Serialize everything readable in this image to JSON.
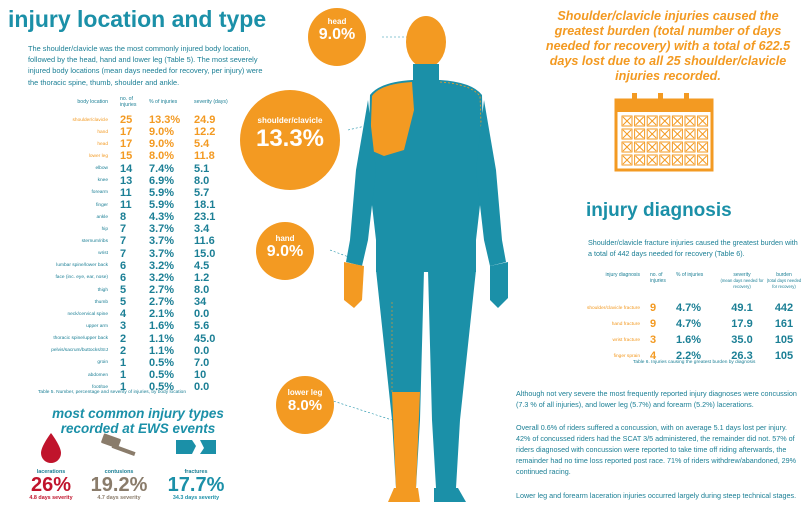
{
  "header": {
    "title": "injury location and type",
    "intro": "The shoulder/clavicle was the most commonly injured body location, followed by the head, hand and lower leg (Table 5). The most severely injured body locations (mean days needed for recovery, per injury) were the thoracic spine, thumb, shoulder and ankle."
  },
  "location_table": {
    "headers": [
      "body location",
      "no. of injuries",
      "% of injuries",
      "severity (days)"
    ],
    "rows": [
      {
        "name": "shoulder/clavicle",
        "n": "25",
        "pct": "13.3%",
        "sev": "24.9",
        "hi": true
      },
      {
        "name": "hand",
        "n": "17",
        "pct": "9.0%",
        "sev": "12.2",
        "hi": true
      },
      {
        "name": "head",
        "n": "17",
        "pct": "9.0%",
        "sev": "5.4",
        "hi": true
      },
      {
        "name": "lower leg",
        "n": "15",
        "pct": "8.0%",
        "sev": "11.8",
        "hi": true
      },
      {
        "name": "elbow",
        "n": "14",
        "pct": "7.4%",
        "sev": "5.1",
        "hi": false
      },
      {
        "name": "knee",
        "n": "13",
        "pct": "6.9%",
        "sev": "8.0",
        "hi": false
      },
      {
        "name": "forearm",
        "n": "11",
        "pct": "5.9%",
        "sev": "5.7",
        "hi": false
      },
      {
        "name": "finger",
        "n": "11",
        "pct": "5.9%",
        "sev": "18.1",
        "hi": false
      },
      {
        "name": "ankle",
        "n": "8",
        "pct": "4.3%",
        "sev": "23.1",
        "hi": false
      },
      {
        "name": "hip",
        "n": "7",
        "pct": "3.7%",
        "sev": "3.4",
        "hi": false
      },
      {
        "name": "sternum/ribs",
        "n": "7",
        "pct": "3.7%",
        "sev": "11.6",
        "hi": false
      },
      {
        "name": "wrist",
        "n": "7",
        "pct": "3.7%",
        "sev": "15.0",
        "hi": false
      },
      {
        "name": "lumbar spine/lower back",
        "n": "6",
        "pct": "3.2%",
        "sev": "4.5",
        "hi": false
      },
      {
        "name": "face (inc. eye, ear, nose)",
        "n": "6",
        "pct": "3.2%",
        "sev": "1.2",
        "hi": false
      },
      {
        "name": "thigh",
        "n": "5",
        "pct": "2.7%",
        "sev": "8.0",
        "hi": false
      },
      {
        "name": "thumb",
        "n": "5",
        "pct": "2.7%",
        "sev": "34",
        "hi": false
      },
      {
        "name": "neck/cervical spine",
        "n": "4",
        "pct": "2.1%",
        "sev": "0.0",
        "hi": false
      },
      {
        "name": "upper arm",
        "n": "3",
        "pct": "1.6%",
        "sev": "5.6",
        "hi": false
      },
      {
        "name": "thoracic spine/upper back",
        "n": "2",
        "pct": "1.1%",
        "sev": "45.0",
        "hi": false
      },
      {
        "name": "pelvis/sacrum/buttocks/SIJ",
        "n": "2",
        "pct": "1.1%",
        "sev": "0.0",
        "hi": false
      },
      {
        "name": "groin",
        "n": "1",
        "pct": "0.5%",
        "sev": "7.0",
        "hi": false
      },
      {
        "name": "abdomen",
        "n": "1",
        "pct": "0.5%",
        "sev": "10",
        "hi": false
      },
      {
        "name": "foot/toe",
        "n": "1",
        "pct": "0.5%",
        "sev": "0.0",
        "hi": false
      }
    ],
    "caption": "Table 5. Number, percentage and severity of injuries, by body location"
  },
  "types": {
    "title": "most common injury types recorded at EWS events",
    "items": [
      {
        "label": "lacerations",
        "pct": "26%",
        "sev": "4.8 days severity",
        "color": "#c0142c"
      },
      {
        "label": "contusions",
        "pct": "19.2%",
        "sev": "4.7 days severity",
        "color": "#8a7c6b"
      },
      {
        "label": "fractures",
        "pct": "17.7%",
        "sev": "34.3 days severity",
        "color": "#1b90a8"
      }
    ]
  },
  "body": {
    "head": {
      "label": "head",
      "value": "9.0%"
    },
    "shoulder": {
      "label": "shoulder/clavicle",
      "value": "13.3%"
    },
    "hand": {
      "label": "hand",
      "value": "9.0%"
    },
    "lower_leg": {
      "label": "lower leg",
      "value": "8.0%"
    },
    "body_color": "#1b90a8",
    "highlight_color": "#f39a22"
  },
  "quote": "Shoulder/clavicle injuries caused the greatest burden (total number of days needed for recovery) with a total of 622.5 days lost due to all 25 shoulder/clavicle injuries recorded.",
  "diagnosis": {
    "title": "injury diagnosis",
    "intro": "Shoulder/clavicle fracture injuries caused the greatest burden with a total of 442 days needed for recovery (Table 6).",
    "headers": {
      "name": "injury diagnosis",
      "n": "no. of injuries",
      "pct": "% of injuries",
      "sev": "severity",
      "sev_sub": "(mean days needed for recovery)",
      "burden": "burden",
      "burden_sub": "(total days needed for recovery)"
    },
    "rows": [
      {
        "name": "shoulder/clavicle fracture",
        "n": "9",
        "pct": "4.7%",
        "sev": "49.1",
        "burden": "442"
      },
      {
        "name": "hand fracture",
        "n": "9",
        "pct": "4.7%",
        "sev": "17.9",
        "burden": "161"
      },
      {
        "name": "wrist fracture",
        "n": "3",
        "pct": "1.6%",
        "sev": "35.0",
        "burden": "105"
      },
      {
        "name": "finger sprain",
        "n": "4",
        "pct": "2.2%",
        "sev": "26.3",
        "burden": "105"
      }
    ],
    "caption": "Table 6. Injuries causing the greatest burden by diagnosis"
  },
  "paragraphs": {
    "p1": "Although not very severe the most frequently reported injury diagnoses were concussion (7.3 % of all injuries), and lower leg (5.7%) and forearm (5.2%) lacerations.",
    "p2": "Overall 0.6% of riders suffered a concussion, with on average 5.1 days lost per injury.  42% of concussed riders had the SCAT 3/5 administered, the remainder did not. 57% of riders diagnosed with concussion were reported to take time off riding afterwards, the remainder had no time loss reported post race. 71% of riders withdrew/abandoned, 29% continued racing.",
    "p3": "Lower leg and forearm laceration injuries occurred largely during steep technical stages."
  }
}
